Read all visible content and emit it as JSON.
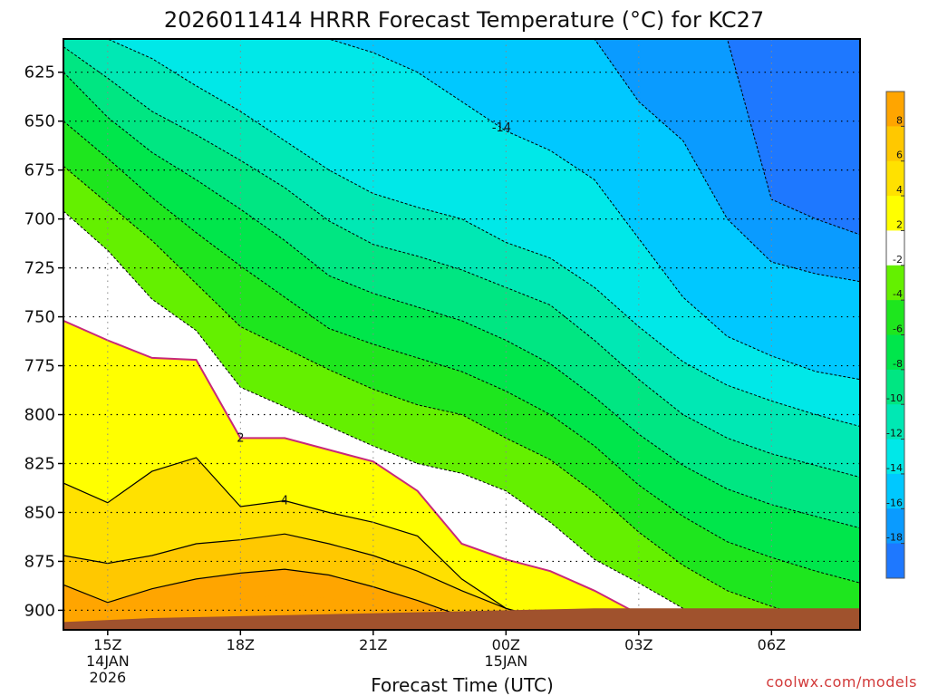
{
  "colors": {
    "m18": "#1e78ff",
    "m16": "#0a9bff",
    "m14": "#00c8ff",
    "m12": "#00e8e8",
    "m10": "#00e8b4",
    "m8": "#00e682",
    "m6": "#00e64b",
    "m4": "#1ee61e",
    "m2": "#64f000",
    "p0": "#ffffff",
    "p2": "#ffff00",
    "p4": "#ffe100",
    "p6": "#ffc800",
    "p8": "#ffa500",
    "ground": "#a0522d",
    "freezing_line": "#c8287a"
  },
  "chart_data": {
    "type": "heatmap",
    "title": "2026011414 HRRR Forecast Temperature (°C) for KC27",
    "xlabel": "Forecast Time (UTC)",
    "ylabel": "",
    "x_ticks": [
      {
        "hour": 15,
        "label": "15Z",
        "date_line1": "14JAN",
        "date_line2": "2026"
      },
      {
        "hour": 18,
        "label": "18Z",
        "date_line1": "",
        "date_line2": ""
      },
      {
        "hour": 21,
        "label": "21Z",
        "date_line1": "",
        "date_line2": ""
      },
      {
        "hour": 24,
        "label": "00Z",
        "date_line1": "15JAN",
        "date_line2": ""
      },
      {
        "hour": 27,
        "label": "03Z",
        "date_line1": "",
        "date_line2": ""
      },
      {
        "hour": 30,
        "label": "06Z",
        "date_line1": "",
        "date_line2": ""
      }
    ],
    "y_ticks": [
      625,
      650,
      675,
      700,
      725,
      750,
      775,
      800,
      825,
      850,
      875,
      900
    ],
    "ylim": [
      910,
      608
    ],
    "xlim": [
      14,
      32
    ],
    "grid": true,
    "colorbar_ticks": [
      8,
      6,
      4,
      2,
      -2,
      -4,
      -6,
      -8,
      -10,
      -12,
      -14,
      -16,
      -18
    ],
    "colorbar_placement": "right",
    "contour_labels": [
      {
        "text": "-14",
        "level": -14
      },
      {
        "text": "2",
        "level": 2
      },
      {
        "text": "4",
        "level": 4
      }
    ],
    "credit": "coolwx.com/models",
    "boundaries_x": [
      14,
      15,
      16,
      17,
      18,
      19,
      20,
      21,
      22,
      23,
      24,
      25,
      26,
      27,
      28,
      29,
      30,
      31,
      32
    ],
    "boundaries": [
      {
        "level": 10,
        "p": [
          895,
          906,
          902,
          897,
          894,
          892,
          894,
          900,
          906,
          910,
          910,
          910,
          910,
          910,
          910,
          910,
          910,
          910,
          910
        ]
      },
      {
        "level": 8,
        "p": [
          887,
          896,
          889,
          884,
          881,
          879,
          882,
          888,
          895,
          903,
          908,
          910,
          910,
          910,
          910,
          910,
          910,
          910,
          910
        ]
      },
      {
        "level": 6,
        "p": [
          872,
          876,
          872,
          866,
          864,
          861,
          866,
          872,
          880,
          890,
          899,
          906,
          910,
          910,
          910,
          910,
          910,
          910,
          910
        ]
      },
      {
        "level": 4,
        "p": [
          835,
          845,
          829,
          822,
          847,
          844,
          850,
          855,
          862,
          884,
          899,
          905,
          909,
          910,
          910,
          910,
          910,
          910,
          910
        ]
      },
      {
        "level": 2,
        "p": [
          752,
          762,
          771,
          772,
          812,
          812,
          818,
          824,
          839,
          866,
          874,
          880,
          890,
          902,
          908,
          910,
          910,
          910,
          910
        ]
      },
      {
        "level": -2,
        "p": [
          696,
          716,
          741,
          757,
          786,
          796,
          806,
          816,
          825,
          830,
          839,
          855,
          874,
          886,
          899,
          906,
          909,
          910,
          910
        ]
      },
      {
        "level": -4,
        "p": [
          673,
          692,
          711,
          733,
          755,
          766,
          777,
          787,
          795,
          800,
          812,
          823,
          840,
          860,
          877,
          890,
          898,
          905,
          910
        ]
      },
      {
        "level": -6,
        "p": [
          650,
          669,
          689,
          707,
          724,
          740,
          756,
          764,
          771,
          778,
          788,
          800,
          816,
          836,
          852,
          865,
          873,
          880,
          886
        ]
      },
      {
        "level": -8,
        "p": [
          625,
          648,
          666,
          680,
          695,
          711,
          729,
          738,
          745,
          752,
          762,
          774,
          791,
          810,
          826,
          838,
          846,
          852,
          858
        ]
      },
      {
        "level": -10,
        "p": [
          612,
          628,
          645,
          657,
          670,
          684,
          701,
          713,
          719,
          726,
          735,
          744,
          762,
          782,
          800,
          812,
          820,
          826,
          832
        ]
      },
      {
        "level": -12,
        "p": [
          608,
          608,
          618,
          632,
          645,
          660,
          675,
          687,
          694,
          700,
          712,
          720,
          735,
          755,
          773,
          785,
          793,
          800,
          806
        ]
      },
      {
        "level": -14,
        "p": [
          608,
          608,
          608,
          608,
          608,
          608,
          608,
          615,
          625,
          640,
          655,
          665,
          680,
          710,
          740,
          760,
          770,
          778,
          782
        ]
      },
      {
        "level": -16,
        "p": [
          608,
          608,
          608,
          608,
          608,
          608,
          608,
          608,
          608,
          608,
          608,
          608,
          608,
          640,
          660,
          700,
          722,
          728,
          732
        ]
      },
      {
        "level": -18,
        "p": [
          608,
          608,
          608,
          608,
          608,
          608,
          608,
          608,
          608,
          608,
          608,
          608,
          608,
          608,
          608,
          608,
          690,
          700,
          708
        ]
      }
    ],
    "ground": {
      "x": [
        14,
        16,
        18,
        20,
        22,
        24,
        26,
        28,
        30,
        32
      ],
      "p": [
        906,
        904,
        903,
        902,
        901,
        900,
        899,
        899,
        899,
        899
      ]
    }
  }
}
